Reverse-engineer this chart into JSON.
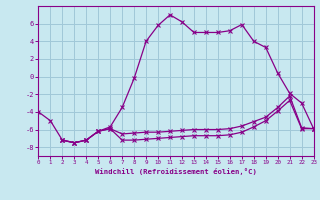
{
  "xlabel": "Windchill (Refroidissement éolien,°C)",
  "bg_color": "#c8e8f0",
  "grid_color": "#a0c8d8",
  "line_color": "#880088",
  "xlim": [
    0,
    23
  ],
  "ylim": [
    -9,
    8
  ],
  "xticks": [
    0,
    1,
    2,
    3,
    4,
    5,
    6,
    7,
    8,
    9,
    10,
    11,
    12,
    13,
    14,
    15,
    16,
    17,
    18,
    19,
    20,
    21,
    22,
    23
  ],
  "yticks": [
    -8,
    -6,
    -4,
    -2,
    0,
    2,
    4,
    6
  ],
  "line1_x": [
    0,
    1,
    2,
    3,
    4,
    5,
    6,
    7,
    8,
    9,
    10,
    11,
    12,
    13,
    14,
    15,
    16,
    17,
    18,
    19,
    20,
    21,
    22,
    23
  ],
  "line1_y": [
    -4.0,
    -5.0,
    -7.2,
    -7.5,
    -7.2,
    -6.2,
    -5.7,
    -3.5,
    -0.2,
    4.0,
    5.8,
    7.0,
    6.2,
    5.0,
    5.0,
    5.0,
    5.2,
    5.9,
    4.0,
    3.3,
    0.4,
    -1.9,
    -3.0,
    -5.9
  ],
  "line2_x": [
    2,
    3,
    4,
    5,
    6,
    7,
    8,
    9,
    10,
    11,
    12,
    13,
    14,
    15,
    16,
    17,
    18,
    19,
    20,
    21,
    22,
    23
  ],
  "line2_y": [
    -7.2,
    -7.5,
    -7.2,
    -6.2,
    -5.9,
    -6.5,
    -6.4,
    -6.3,
    -6.3,
    -6.2,
    -6.1,
    -6.0,
    -6.0,
    -6.0,
    -5.9,
    -5.6,
    -5.1,
    -4.6,
    -3.5,
    -2.2,
    -5.8,
    -5.9
  ],
  "line3_x": [
    2,
    3,
    4,
    5,
    6,
    7,
    8,
    9,
    10,
    11,
    12,
    13,
    14,
    15,
    16,
    17,
    18,
    19,
    20,
    21,
    22,
    23
  ],
  "line3_y": [
    -7.2,
    -7.5,
    -7.2,
    -6.2,
    -5.9,
    -7.2,
    -7.2,
    -7.1,
    -7.0,
    -6.9,
    -6.8,
    -6.7,
    -6.7,
    -6.7,
    -6.6,
    -6.3,
    -5.7,
    -5.0,
    -3.9,
    -2.7,
    -5.9,
    -5.9
  ]
}
